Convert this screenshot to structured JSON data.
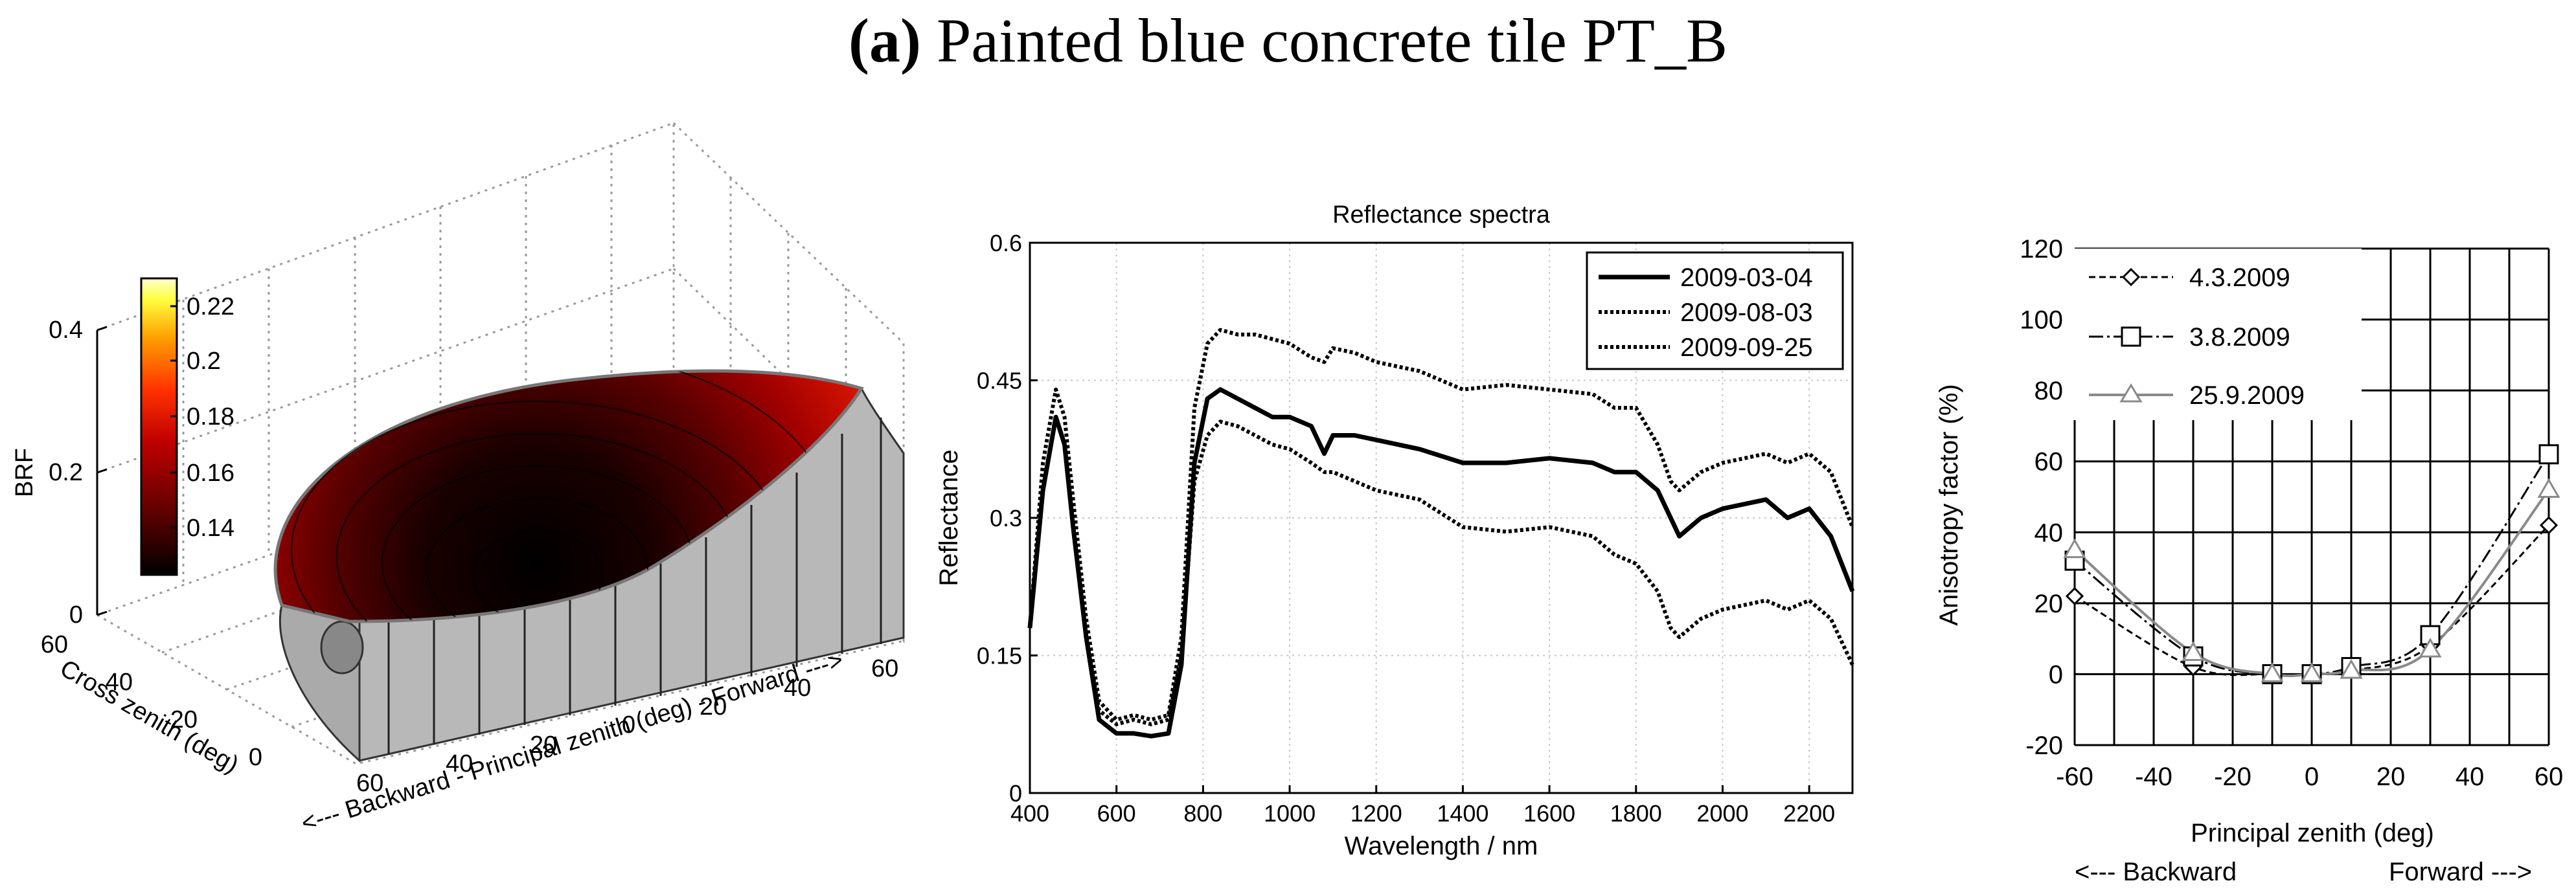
{
  "figure": {
    "label": "(a)",
    "title": "Painted blue concrete tile PT_B"
  },
  "colors": {
    "series_black": "#000000",
    "series_gray": "#8a8a8a",
    "wall_gray": "#b8b8b8",
    "colormap": [
      "#000000",
      "#3a0000",
      "#8b0000",
      "#d20000",
      "#ff5a00",
      "#ffc000",
      "#ffff80",
      "#ffffff"
    ]
  },
  "chart_data": [
    {
      "type": "surface",
      "zlabel": "BRF",
      "z_ticks": [
        "0",
        "0.2",
        "0.4"
      ],
      "zlim": [
        0,
        0.4
      ],
      "colorbar_ticks": [
        "0.14",
        "0.16",
        "0.18",
        "0.2",
        "0.22"
      ],
      "clim": [
        0.125,
        0.232
      ],
      "ylabel": "Cross zenith (deg)",
      "y_ticks": [
        "0",
        "20",
        "40",
        "60"
      ],
      "xlabel": "<--- Backward -  Principal zenith (deg)  - Forward --->",
      "x_ticks": [
        "60",
        "40",
        "20",
        "0",
        "20",
        "40",
        "60"
      ],
      "brf_principal_plane": {
        "principal_zenith_deg": [
          -60,
          -40,
          -20,
          0,
          20,
          40,
          60
        ],
        "brf": [
          0.16,
          0.14,
          0.13,
          0.128,
          0.135,
          0.17,
          0.23
        ]
      }
    },
    {
      "type": "line",
      "title": "Reflectance spectra",
      "xlabel": "Wavelength / nm",
      "ylabel": "Reflectance",
      "xlim": [
        400,
        2300
      ],
      "ylim": [
        0,
        0.6
      ],
      "x_ticks": [
        "400",
        "600",
        "800",
        "1000",
        "1200",
        "1400",
        "1600",
        "1800",
        "2000",
        "2200"
      ],
      "y_ticks": [
        "0",
        "0.15",
        "0.3",
        "0.45",
        "0.6"
      ],
      "grid": true,
      "legend_position": "top-right",
      "x": [
        400,
        430,
        460,
        480,
        500,
        530,
        560,
        600,
        640,
        680,
        720,
        750,
        780,
        810,
        840,
        880,
        920,
        960,
        1000,
        1050,
        1080,
        1100,
        1150,
        1200,
        1300,
        1400,
        1500,
        1600,
        1700,
        1750,
        1800,
        1850,
        1880,
        1900,
        1950,
        2000,
        2100,
        2150,
        2200,
        2250,
        2300
      ],
      "series": [
        {
          "name": "2009-03-04",
          "style": "solid",
          "values": [
            0.18,
            0.33,
            0.41,
            0.38,
            0.29,
            0.17,
            0.08,
            0.065,
            0.065,
            0.062,
            0.065,
            0.14,
            0.36,
            0.43,
            0.44,
            0.43,
            0.42,
            0.41,
            0.41,
            0.4,
            0.37,
            0.39,
            0.39,
            0.385,
            0.375,
            0.36,
            0.36,
            0.365,
            0.36,
            0.35,
            0.35,
            0.33,
            0.3,
            0.28,
            0.3,
            0.31,
            0.32,
            0.3,
            0.31,
            0.28,
            0.22
          ]
        },
        {
          "name": "2009-08-03",
          "style": "dotted",
          "values": [
            0.18,
            0.36,
            0.44,
            0.41,
            0.32,
            0.19,
            0.1,
            0.08,
            0.085,
            0.08,
            0.085,
            0.17,
            0.42,
            0.49,
            0.505,
            0.5,
            0.5,
            0.495,
            0.49,
            0.475,
            0.47,
            0.485,
            0.48,
            0.47,
            0.46,
            0.44,
            0.445,
            0.44,
            0.435,
            0.42,
            0.42,
            0.38,
            0.34,
            0.33,
            0.35,
            0.36,
            0.37,
            0.36,
            0.37,
            0.35,
            0.29
          ]
        },
        {
          "name": "2009-09-25",
          "style": "dotted",
          "values": [
            0.18,
            0.33,
            0.41,
            0.38,
            0.29,
            0.17,
            0.09,
            0.075,
            0.08,
            0.075,
            0.08,
            0.15,
            0.34,
            0.39,
            0.405,
            0.4,
            0.39,
            0.38,
            0.375,
            0.36,
            0.35,
            0.35,
            0.34,
            0.33,
            0.32,
            0.29,
            0.285,
            0.29,
            0.28,
            0.26,
            0.25,
            0.22,
            0.18,
            0.17,
            0.19,
            0.2,
            0.21,
            0.2,
            0.21,
            0.19,
            0.14
          ]
        }
      ]
    },
    {
      "type": "line",
      "xlabel": "Principal zenith (deg)",
      "ylabel": "Anisotropy factor (%)",
      "xlim": [
        -60,
        60
      ],
      "ylim": [
        -20,
        120
      ],
      "x_ticks": [
        "-60",
        "-40",
        "-20",
        "0",
        "20",
        "40",
        "60"
      ],
      "y_ticks": [
        "-20",
        "0",
        "20",
        "40",
        "60",
        "80",
        "100",
        "120"
      ],
      "grid": true,
      "legend_position": "top-left",
      "direction_labels": {
        "backward": "<--- Backward",
        "forward": "Forward --->"
      },
      "series": [
        {
          "name": "4.3.2009",
          "marker": "diamond",
          "style": "dashed",
          "x": [
            -60,
            -30,
            -10,
            0,
            10,
            30,
            60
          ],
          "values": [
            22,
            2,
            0,
            0,
            1,
            8,
            42
          ]
        },
        {
          "name": "3.8.2009",
          "marker": "square",
          "style": "dash-dot",
          "x": [
            -60,
            -30,
            -10,
            0,
            10,
            30,
            60
          ],
          "values": [
            32,
            5,
            0,
            0,
            2,
            11,
            62
          ]
        },
        {
          "name": "25.9.2009",
          "marker": "triangle",
          "style": "solid-gray",
          "x": [
            -60,
            -30,
            -10,
            0,
            10,
            30,
            60
          ],
          "values": [
            35,
            6,
            0,
            0,
            1,
            7,
            52
          ]
        }
      ]
    }
  ]
}
